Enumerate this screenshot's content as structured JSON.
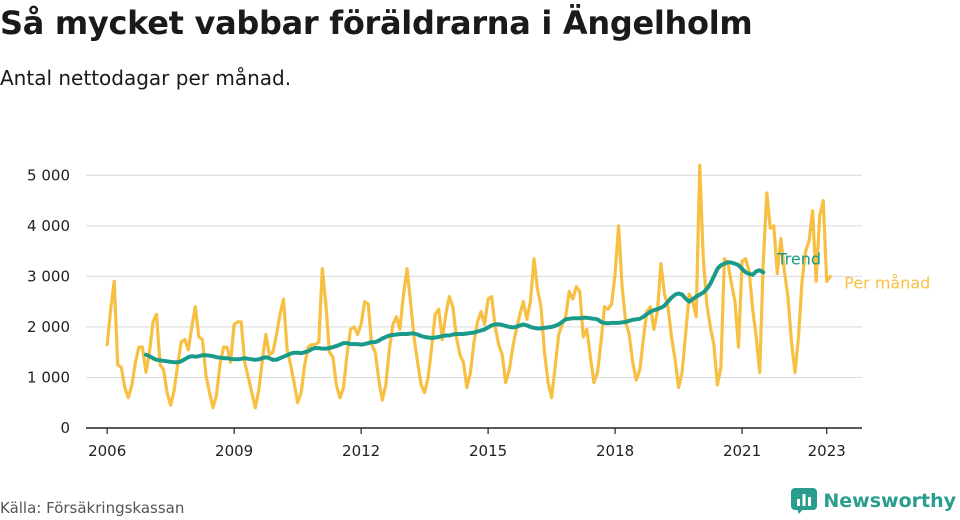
{
  "header": {
    "title": "Så mycket vabbar föräldrarna i Ängelholm",
    "subtitle": "Antal nettodagar per månad."
  },
  "footer": {
    "source": "Källa: Försäkringskassan",
    "brand": "Newsworthy",
    "brand_icon": "bar-chart-logo-icon",
    "brand_color": "#2a9d8f"
  },
  "chart_data": {
    "type": "line",
    "x_start": "2006-01",
    "x_step": "month",
    "xlim": [
      "2005-07",
      "2023-11"
    ],
    "x_ticks": [
      "2006",
      "2009",
      "2012",
      "2015",
      "2018",
      "2021",
      "2023"
    ],
    "ylim": [
      0,
      5500
    ],
    "y_ticks": [
      0,
      1000,
      2000,
      3000,
      4000,
      5000
    ],
    "y_tick_labels": [
      "0",
      "1 000",
      "2 000",
      "3 000",
      "4 000",
      "5 000"
    ],
    "grid": "horizontal",
    "legend": "end-of-line labels",
    "series": [
      {
        "name": "Per månad",
        "color": "#f7c043",
        "values": [
          1650,
          2350,
          2900,
          1250,
          1200,
          800,
          600,
          850,
          1300,
          1600,
          1600,
          1100,
          1500,
          2100,
          2250,
          1250,
          1150,
          700,
          450,
          750,
          1250,
          1700,
          1750,
          1550,
          2000,
          2400,
          1800,
          1750,
          1050,
          700,
          400,
          650,
          1250,
          1600,
          1600,
          1300,
          2050,
          2100,
          2100,
          1300,
          1000,
          700,
          400,
          750,
          1350,
          1850,
          1450,
          1500,
          1850,
          2250,
          2550,
          1550,
          1250,
          900,
          500,
          700,
          1250,
          1600,
          1650,
          1650,
          1700,
          3150,
          2450,
          1500,
          1400,
          850,
          600,
          800,
          1450,
          1950,
          2000,
          1850,
          2050,
          2500,
          2450,
          1650,
          1500,
          950,
          550,
          850,
          1550,
          2050,
          2200,
          1950,
          2650,
          3150,
          2500,
          1800,
          1300,
          850,
          700,
          1000,
          1600,
          2250,
          2350,
          1750,
          2250,
          2600,
          2400,
          1800,
          1450,
          1300,
          800,
          1100,
          1700,
          2100,
          2300,
          2050,
          2550,
          2600,
          2000,
          1650,
          1450,
          900,
          1150,
          1600,
          1950,
          2250,
          2500,
          2150,
          2500,
          3350,
          2750,
          2400,
          1500,
          900,
          600,
          1200,
          1850,
          2050,
          2200,
          2700,
          2550,
          2800,
          2700,
          1800,
          1950,
          1400,
          900,
          1100,
          1700,
          2400,
          2350,
          2450,
          3050,
          4000,
          2800,
          2100,
          1850,
          1300,
          950,
          1150,
          1750,
          2300,
          2400,
          1950,
          2300,
          3250,
          2650,
          2400,
          1800,
          1350,
          800,
          1100,
          1850,
          2650,
          2500,
          2200,
          5200,
          3350,
          2450,
          2000,
          1650,
          850,
          1200,
          3350,
          3250,
          2850,
          2500,
          1600,
          3300,
          3350,
          3100,
          2350,
          1800,
          1100,
          3250,
          4650,
          3950,
          4000,
          3050,
          3750,
          3100,
          2600,
          1700,
          1100,
          1800,
          2900,
          3500,
          3700,
          4300,
          2900,
          4200,
          4500,
          2900,
          3000
        ]
      },
      {
        "name": "Trend",
        "color": "#1a9b89",
        "values_start_index": 11,
        "values": [
          1450,
          1420,
          1380,
          1350,
          1340,
          1330,
          1320,
          1310,
          1300,
          1300,
          1320,
          1360,
          1400,
          1420,
          1410,
          1420,
          1440,
          1440,
          1430,
          1420,
          1400,
          1390,
          1380,
          1380,
          1370,
          1360,
          1360,
          1370,
          1380,
          1370,
          1360,
          1350,
          1360,
          1380,
          1400,
          1380,
          1350,
          1350,
          1380,
          1410,
          1440,
          1470,
          1490,
          1490,
          1480,
          1500,
          1520,
          1560,
          1580,
          1580,
          1570,
          1570,
          1580,
          1600,
          1620,
          1650,
          1680,
          1680,
          1660,
          1660,
          1660,
          1650,
          1660,
          1680,
          1700,
          1700,
          1730,
          1770,
          1800,
          1830,
          1840,
          1850,
          1860,
          1860,
          1860,
          1870,
          1870,
          1850,
          1820,
          1800,
          1790,
          1780,
          1790,
          1800,
          1820,
          1830,
          1830,
          1850,
          1860,
          1860,
          1860,
          1870,
          1880,
          1890,
          1910,
          1930,
          1950,
          1990,
          2030,
          2050,
          2050,
          2040,
          2020,
          2000,
          1990,
          2000,
          2030,
          2050,
          2030,
          2000,
          1980,
          1970,
          1970,
          1980,
          1990,
          2000,
          2020,
          2050,
          2100,
          2150,
          2160,
          2170,
          2170,
          2170,
          2180,
          2180,
          2170,
          2160,
          2150,
          2100,
          2080,
          2070,
          2080,
          2080,
          2080,
          2090,
          2100,
          2120,
          2140,
          2150,
          2160,
          2200,
          2250,
          2300,
          2330,
          2350,
          2380,
          2420,
          2500,
          2580,
          2640,
          2660,
          2640,
          2560,
          2500,
          2550,
          2600,
          2640,
          2680,
          2750,
          2850,
          3000,
          3150,
          3220,
          3250,
          3280,
          3270,
          3250,
          3220,
          3150,
          3080,
          3050,
          3030,
          3100,
          3120,
          3080
        ]
      }
    ]
  }
}
